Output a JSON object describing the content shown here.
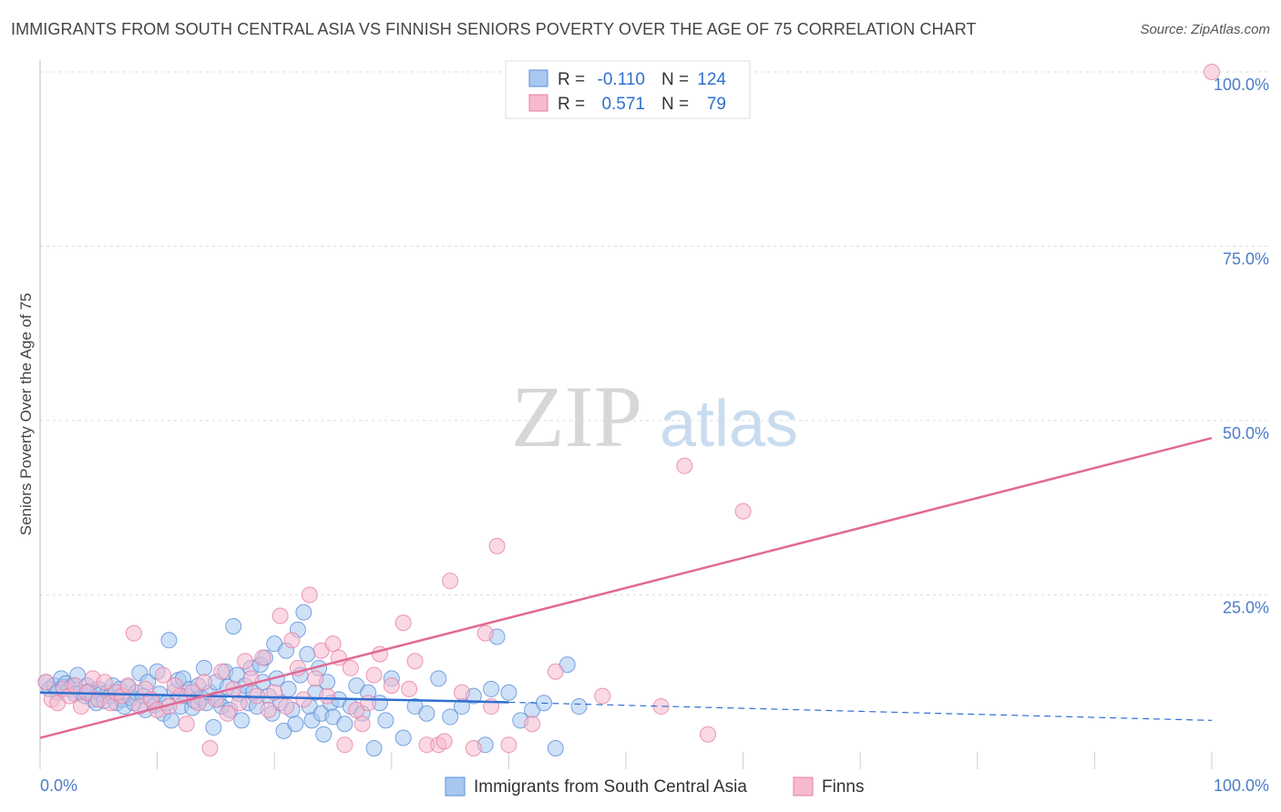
{
  "title": "IMMIGRANTS FROM SOUTH CENTRAL ASIA VS FINNISH SENIORS POVERTY OVER THE AGE OF 75 CORRELATION CHART",
  "source": "Source: ZipAtlas.com",
  "watermark": {
    "zip": "ZIP",
    "atlas": "atlas"
  },
  "colors": {
    "blue_fill": "#a8c8f0",
    "blue_stroke": "#5a8fd8",
    "blue_line": "#2f6fcf",
    "pink_fill": "#f6b9cd",
    "pink_stroke": "#e77fa3",
    "pink_line": "#e06a95",
    "tick_label": "#4a7cc9",
    "grid": "#dddddd"
  },
  "legend": {
    "blue": {
      "r_label": "R =",
      "r_value": "-0.110",
      "n_label": "N =",
      "n_value": "124"
    },
    "pink": {
      "r_label": "R =",
      "r_value": "0.571",
      "n_label": "N =",
      "n_value": "79"
    }
  },
  "bottom_legend": {
    "blue_label": "Immigrants from South Central Asia",
    "pink_label": "Finns"
  },
  "chart_data": {
    "type": "scatter",
    "title": "IMMIGRANTS FROM SOUTH CENTRAL ASIA VS FINNISH SENIORS POVERTY OVER THE AGE OF 75 CORRELATION CHART",
    "xlabel": "",
    "ylabel": "Seniors Poverty Over the Age of 75",
    "xlim": [
      0,
      100
    ],
    "ylim": [
      0,
      100
    ],
    "x_tick_labels": [
      "0.0%",
      "100.0%"
    ],
    "y_ticks": [
      25,
      50,
      75,
      100
    ],
    "y_tick_labels": [
      "25.0%",
      "50.0%",
      "75.0%",
      "100.0%"
    ],
    "grid": true,
    "series": [
      {
        "name": "Immigrants from South Central Asia",
        "color": "#a8c8f0",
        "r": -0.11,
        "n": 124,
        "trend": {
          "x": [
            0,
            40,
            100
          ],
          "y": [
            11.0,
            9.6,
            7.0
          ],
          "solid_until": 40
        },
        "points": [
          [
            0.5,
            12.5
          ],
          [
            0.8,
            11.5
          ],
          [
            1.2,
            12.0
          ],
          [
            1.5,
            11.0
          ],
          [
            1.8,
            13.0
          ],
          [
            2.0,
            11.8
          ],
          [
            2.2,
            12.3
          ],
          [
            2.5,
            11.5
          ],
          [
            2.8,
            12.0
          ],
          [
            3.0,
            10.8
          ],
          [
            3.2,
            13.5
          ],
          [
            3.5,
            11.0
          ],
          [
            3.8,
            10.5
          ],
          [
            4.0,
            12.0
          ],
          [
            4.2,
            11.2
          ],
          [
            4.5,
            10.0
          ],
          [
            4.8,
            9.5
          ],
          [
            5.0,
            11.5
          ],
          [
            5.2,
            10.8
          ],
          [
            5.5,
            9.8
          ],
          [
            5.8,
            11.0
          ],
          [
            6.0,
            10.5
          ],
          [
            6.2,
            12.0
          ],
          [
            6.5,
            9.5
          ],
          [
            6.8,
            11.5
          ],
          [
            7.0,
            10.0
          ],
          [
            7.2,
            9.0
          ],
          [
            7.5,
            11.8
          ],
          [
            7.8,
            10.2
          ],
          [
            8.0,
            9.5
          ],
          [
            8.2,
            11.0
          ],
          [
            8.5,
            13.8
          ],
          [
            8.8,
            10.5
          ],
          [
            9.0,
            8.5
          ],
          [
            9.2,
            12.5
          ],
          [
            9.5,
            10.0
          ],
          [
            9.8,
            9.2
          ],
          [
            10.0,
            14.0
          ],
          [
            10.2,
            10.8
          ],
          [
            10.5,
            8.0
          ],
          [
            10.8,
            9.5
          ],
          [
            11.0,
            18.5
          ],
          [
            11.2,
            7.0
          ],
          [
            11.5,
            11.2
          ],
          [
            11.8,
            12.8
          ],
          [
            12.0,
            9.0
          ],
          [
            12.2,
            13.0
          ],
          [
            12.5,
            10.5
          ],
          [
            12.8,
            11.5
          ],
          [
            13.0,
            8.8
          ],
          [
            13.2,
            9.8
          ],
          [
            13.5,
            12.0
          ],
          [
            13.8,
            10.2
          ],
          [
            14.0,
            14.5
          ],
          [
            14.2,
            9.5
          ],
          [
            14.5,
            11.0
          ],
          [
            14.8,
            6.0
          ],
          [
            15.0,
            12.5
          ],
          [
            15.2,
            10.0
          ],
          [
            15.5,
            9.0
          ],
          [
            15.8,
            14.0
          ],
          [
            16.0,
            11.8
          ],
          [
            16.2,
            8.5
          ],
          [
            16.5,
            20.5
          ],
          [
            16.8,
            13.5
          ],
          [
            17.0,
            10.8
          ],
          [
            17.2,
            7.0
          ],
          [
            17.5,
            12.0
          ],
          [
            17.8,
            9.5
          ],
          [
            18.0,
            14.5
          ],
          [
            18.2,
            11.0
          ],
          [
            18.5,
            9.0
          ],
          [
            18.8,
            15.0
          ],
          [
            19.0,
            12.5
          ],
          [
            19.2,
            16.0
          ],
          [
            19.5,
            10.5
          ],
          [
            19.8,
            8.0
          ],
          [
            20.0,
            18.0
          ],
          [
            20.2,
            13.0
          ],
          [
            20.5,
            9.5
          ],
          [
            20.8,
            5.5
          ],
          [
            21.0,
            17.0
          ],
          [
            21.2,
            11.5
          ],
          [
            21.5,
            8.5
          ],
          [
            21.8,
            6.5
          ],
          [
            22.0,
            20.0
          ],
          [
            22.2,
            13.5
          ],
          [
            22.5,
            22.5
          ],
          [
            22.8,
            16.5
          ],
          [
            23.0,
            9.0
          ],
          [
            23.2,
            7.0
          ],
          [
            23.5,
            11.0
          ],
          [
            23.8,
            14.5
          ],
          [
            24.0,
            8.0
          ],
          [
            24.2,
            5.0
          ],
          [
            24.5,
            12.5
          ],
          [
            24.8,
            9.5
          ],
          [
            25.0,
            7.5
          ],
          [
            25.5,
            10.0
          ],
          [
            26.0,
            6.5
          ],
          [
            26.5,
            9.0
          ],
          [
            27.0,
            12.0
          ],
          [
            27.5,
            8.0
          ],
          [
            28.0,
            11.0
          ],
          [
            28.5,
            3.0
          ],
          [
            29.0,
            9.5
          ],
          [
            29.5,
            7.0
          ],
          [
            30.0,
            13.0
          ],
          [
            31.0,
            4.5
          ],
          [
            32.0,
            9.0
          ],
          [
            33.0,
            8.0
          ],
          [
            34.0,
            13.0
          ],
          [
            35.0,
            7.5
          ],
          [
            36.0,
            9.0
          ],
          [
            37.0,
            10.5
          ],
          [
            38.0,
            3.5
          ],
          [
            38.5,
            11.5
          ],
          [
            39.0,
            19.0
          ],
          [
            40.0,
            11.0
          ],
          [
            41.0,
            7.0
          ],
          [
            42.0,
            8.5
          ],
          [
            43.0,
            9.5
          ],
          [
            44.0,
            3.0
          ],
          [
            45.0,
            15.0
          ],
          [
            46.0,
            9.0
          ]
        ]
      },
      {
        "name": "Finns",
        "color": "#f6b9cd",
        "r": 0.571,
        "n": 79,
        "trend": {
          "x": [
            0,
            100
          ],
          "y": [
            4.5,
            47.5
          ]
        },
        "points": [
          [
            0.5,
            12.5
          ],
          [
            1.0,
            10.0
          ],
          [
            1.5,
            9.5
          ],
          [
            2.0,
            11.5
          ],
          [
            2.5,
            10.5
          ],
          [
            3.0,
            12.0
          ],
          [
            3.5,
            9.0
          ],
          [
            4.0,
            11.0
          ],
          [
            4.5,
            13.0
          ],
          [
            5.0,
            10.0
          ],
          [
            5.5,
            12.5
          ],
          [
            6.0,
            9.5
          ],
          [
            6.5,
            11.0
          ],
          [
            7.0,
            10.5
          ],
          [
            7.5,
            12.0
          ],
          [
            8.0,
            19.5
          ],
          [
            8.5,
            9.0
          ],
          [
            9.0,
            11.5
          ],
          [
            9.5,
            10.0
          ],
          [
            10.0,
            8.5
          ],
          [
            10.5,
            13.5
          ],
          [
            11.0,
            9.0
          ],
          [
            11.5,
            12.0
          ],
          [
            12.0,
            10.5
          ],
          [
            12.5,
            6.5
          ],
          [
            13.0,
            11.0
          ],
          [
            13.5,
            9.5
          ],
          [
            14.0,
            12.5
          ],
          [
            14.5,
            3.0
          ],
          [
            15.0,
            10.0
          ],
          [
            15.5,
            14.0
          ],
          [
            16.0,
            8.0
          ],
          [
            16.5,
            11.5
          ],
          [
            17.0,
            9.5
          ],
          [
            17.5,
            15.5
          ],
          [
            18.0,
            13.0
          ],
          [
            18.5,
            10.5
          ],
          [
            19.0,
            16.0
          ],
          [
            19.5,
            8.5
          ],
          [
            20.0,
            11.0
          ],
          [
            20.5,
            22.0
          ],
          [
            21.0,
            9.0
          ],
          [
            21.5,
            18.5
          ],
          [
            22.0,
            14.5
          ],
          [
            22.5,
            10.0
          ],
          [
            23.0,
            25.0
          ],
          [
            23.5,
            13.0
          ],
          [
            24.0,
            17.0
          ],
          [
            24.5,
            10.5
          ],
          [
            25.0,
            18.0
          ],
          [
            25.5,
            16.0
          ],
          [
            26.0,
            3.5
          ],
          [
            26.5,
            14.5
          ],
          [
            27.0,
            8.5
          ],
          [
            27.5,
            6.5
          ],
          [
            28.0,
            9.5
          ],
          [
            28.5,
            13.5
          ],
          [
            29.0,
            16.5
          ],
          [
            30.0,
            12.0
          ],
          [
            31.0,
            21.0
          ],
          [
            31.5,
            11.5
          ],
          [
            32.0,
            15.5
          ],
          [
            33.0,
            3.5
          ],
          [
            34.0,
            3.5
          ],
          [
            34.5,
            4.0
          ],
          [
            35.0,
            27.0
          ],
          [
            36.0,
            11.0
          ],
          [
            37.0,
            3.0
          ],
          [
            38.0,
            19.5
          ],
          [
            38.5,
            9.0
          ],
          [
            39.0,
            32.0
          ],
          [
            40.0,
            3.5
          ],
          [
            42.0,
            6.5
          ],
          [
            44.0,
            14.0
          ],
          [
            48.0,
            10.5
          ],
          [
            53.0,
            9.0
          ],
          [
            55.0,
            43.5
          ],
          [
            57.0,
            5.0
          ],
          [
            60.0,
            37.0
          ],
          [
            100.0,
            100.0
          ]
        ]
      }
    ]
  }
}
